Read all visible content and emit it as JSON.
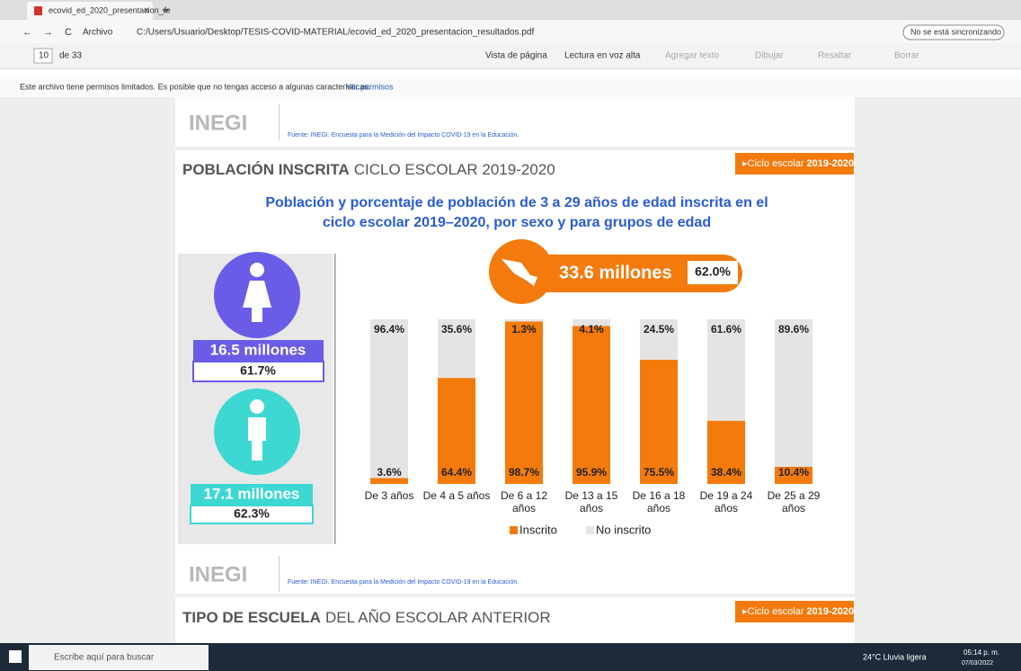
{
  "browser": {
    "tab_title": "ecovid_ed_2020_presentacion_re",
    "address_prefix": "Archivo",
    "url": "C:/Users/Usuario/Desktop/TESIS-COVID-MATERIAL/ecovid_ed_2020_presentacion_resultados.pdf",
    "sync": "No se está sincronizando"
  },
  "pdf_toolbar": {
    "page": "10",
    "page_count": "de 33",
    "tools": [
      "Vista de página",
      "Lectura en voz alta",
      "Agregar texto",
      "Dibujar",
      "Resaltar",
      "Borrar"
    ]
  },
  "notice": {
    "text": "Este archivo tiene permisos limitados. Es posible que no tengas acceso a algunas características.",
    "link": "Ver permisos"
  },
  "header_source": {
    "logo": "INEGI",
    "source": "Fuente: INEGI. Encuesta para la Medición del Impacto COVID-19 en la Educación."
  },
  "slide": {
    "heading_bold": "POBLACIÓN INSCRITA",
    "heading_rest": "CICLO ESCOLAR 2019-2020",
    "badge_label": "Ciclo escolar",
    "badge_year": "2019-2020",
    "total": "33.6 millones",
    "total_pct": "62.0%",
    "women": {
      "total": "16.5 millones",
      "pct": "61.7%"
    },
    "men": {
      "total": "17.1 millones",
      "pct": "62.3%"
    },
    "footer_logo": "INEGI",
    "footer_source": "Fuente: INEGI. Encuesta para la Medición del Impacto COVID-19 en la Educación."
  },
  "chart_data": {
    "type": "bar",
    "stacked": true,
    "title": "Población y porcentaje de población de 3 a 29 años de edad inscrita en el ciclo escolar 2019–2020, por sexo y para grupos de edad",
    "categories": [
      "De 3 años",
      "De 4 a 5 años",
      "De 6 a 12 años",
      "De 13 a 15 años",
      "De 16 a 18 años",
      "De 19 a 24 años",
      "De 25 a 29 años"
    ],
    "series": [
      {
        "name": "Inscrito",
        "color": "#f47a0c",
        "values": [
          3.6,
          64.4,
          98.7,
          95.9,
          75.5,
          38.4,
          10.4
        ],
        "value_labels": [
          "3.6%",
          "64.4%",
          "98.7%",
          "95.9%",
          "75.5%",
          "38.4%",
          "10.4%"
        ]
      },
      {
        "name": "No inscrito",
        "color": "#e4e4e4",
        "values": [
          96.4,
          35.6,
          1.3,
          4.1,
          24.5,
          61.6,
          89.6
        ],
        "value_labels": [
          "96.4%",
          "35.6%",
          "1.3%",
          "4.1%",
          "24.5%",
          "61.6%",
          "89.6%"
        ]
      }
    ],
    "ylim": [
      0,
      100
    ],
    "legend": "bottom"
  },
  "next_slide": {
    "heading_bold": "TIPO DE ESCUELA",
    "heading_rest": "DEL AÑO ESCOLAR ANTERIOR",
    "badge_label": "Ciclo escolar",
    "badge_year": "2019-2020"
  },
  "taskbar": {
    "search": "Escribe aquí para buscar",
    "weather": "24°C Lluvia ligera",
    "time": "05:14 p. m.",
    "date": "07/03/2022"
  }
}
